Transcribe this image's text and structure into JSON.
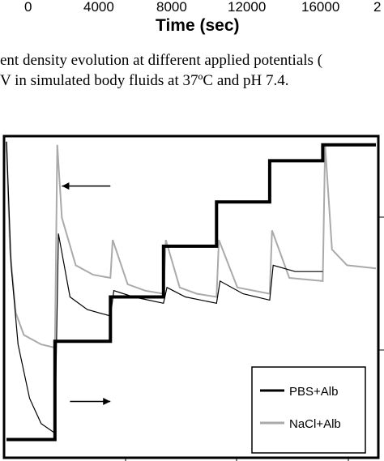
{
  "top_figure_fragment": {
    "xtick_labels": [
      "0",
      "4000",
      "8000",
      "12000",
      "16000",
      "2"
    ],
    "xlabel": "Time (sec)"
  },
  "caption": {
    "line1": "ent density evolution at different applied potentials (",
    "line2": "V in simulated body fluids at 37ºC and pH 7.4."
  },
  "chart_data": {
    "type": "line",
    "title": "",
    "xlabel": "",
    "ylabel": "",
    "xlim": [
      0,
      32000
    ],
    "ylim": [
      0,
      100
    ],
    "grid": false,
    "legend_position": "bottom-right",
    "series": [
      {
        "name": "PBS+Alb",
        "color": "#000000",
        "step_points": [
          [
            0,
            5
          ],
          [
            4200,
            5
          ],
          [
            4200,
            36
          ],
          [
            9000,
            36
          ],
          [
            9000,
            50
          ],
          [
            13600,
            50
          ],
          [
            13600,
            66
          ],
          [
            18200,
            66
          ],
          [
            18200,
            80
          ],
          [
            22800,
            80
          ],
          [
            22800,
            93
          ],
          [
            27400,
            93
          ],
          [
            27400,
            98
          ],
          [
            32000,
            98
          ]
        ],
        "current_points": [
          [
            0,
            99
          ],
          [
            400,
            60
          ],
          [
            1000,
            35
          ],
          [
            2000,
            18
          ],
          [
            3000,
            10
          ],
          [
            4200,
            7
          ],
          [
            4500,
            70
          ],
          [
            5500,
            50
          ],
          [
            7000,
            46
          ],
          [
            9000,
            44
          ],
          [
            9300,
            52
          ],
          [
            11000,
            50
          ],
          [
            13600,
            48
          ],
          [
            13900,
            53
          ],
          [
            15500,
            50
          ],
          [
            18200,
            48
          ],
          [
            18500,
            55
          ],
          [
            20500,
            51
          ],
          [
            22800,
            49
          ],
          [
            23100,
            60
          ],
          [
            25000,
            58
          ],
          [
            27400,
            58
          ]
        ]
      },
      {
        "name": "NaCl+Alb",
        "color": "#aaaaaa",
        "current_points": [
          [
            0,
            99
          ],
          [
            300,
            65
          ],
          [
            800,
            45
          ],
          [
            1500,
            38
          ],
          [
            3000,
            35
          ],
          [
            4200,
            34
          ],
          [
            4400,
            98
          ],
          [
            4800,
            75
          ],
          [
            6000,
            60
          ],
          [
            7500,
            57
          ],
          [
            9000,
            56
          ],
          [
            9200,
            68
          ],
          [
            10500,
            54
          ],
          [
            12000,
            52
          ],
          [
            13600,
            51
          ],
          [
            13800,
            68
          ],
          [
            15000,
            53
          ],
          [
            16500,
            51
          ],
          [
            18200,
            50
          ],
          [
            18400,
            68
          ],
          [
            20000,
            53
          ],
          [
            22800,
            51
          ],
          [
            23000,
            71
          ],
          [
            24500,
            56
          ],
          [
            27400,
            55
          ],
          [
            27600,
            98
          ],
          [
            28200,
            65
          ],
          [
            29500,
            60
          ],
          [
            32000,
            59
          ]
        ]
      }
    ],
    "arrows": [
      {
        "from_x": 9000,
        "to_x": 4800,
        "y": 85,
        "direction": "left"
      },
      {
        "from_x": 5500,
        "to_x": 9000,
        "y": 17,
        "direction": "right"
      }
    ]
  }
}
